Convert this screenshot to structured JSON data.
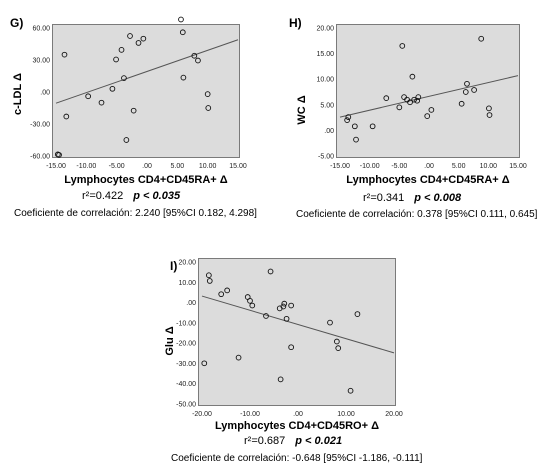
{
  "chart_data": [
    {
      "type": "scatter",
      "panel_label": "G)",
      "xlabel": "Lymphocytes CD4+CD45RA+ Δ",
      "ylabel": "c-LDL Δ",
      "xlim": [
        -15,
        15
      ],
      "ylim": [
        -60,
        60
      ],
      "xticks": [
        "-15.00",
        "-10.00",
        "-5.00",
        ".00",
        "5.00",
        "10.00",
        "15.00"
      ],
      "yticks": [
        "60.00",
        "30.00",
        ".00",
        "-30.00",
        "-60.00"
      ],
      "x": [
        -14.7,
        -14.5,
        -13.6,
        -13.3,
        -9.7,
        -7.5,
        -5.7,
        -5.1,
        -4.2,
        -3.8,
        -3.4,
        -2.8,
        -2.2,
        -1.4,
        -0.6,
        5.6,
        5.9,
        6.0,
        7.8,
        8.4,
        10.0,
        10.1
      ],
      "y": [
        -58.5,
        -59.0,
        35.0,
        -23.0,
        -4.0,
        -10.0,
        3.0,
        30.5,
        39.5,
        13.0,
        -45.0,
        52.5,
        -17.5,
        46.0,
        50.0,
        68.0,
        56.0,
        13.5,
        34.0,
        29.5,
        -2.0,
        -15.0
      ],
      "fit_line": {
        "x": [
          -15,
          15
        ],
        "y": [
          -10.5,
          49.0
        ]
      },
      "r2": "r²=0.422",
      "p": "p < 0.035",
      "coef": "Coeficiente de correlación: 2.240 [95%CI 0.182, 4.298]"
    },
    {
      "type": "scatter",
      "panel_label": "H)",
      "xlabel": "Lymphocytes CD4+CD45RA+ Δ",
      "ylabel": "WC Δ",
      "xlim": [
        -15,
        15
      ],
      "ylim": [
        -5,
        20
      ],
      "xticks": [
        "-15.00",
        "-10.00",
        "-5.00",
        ".00",
        "5.00",
        "10.00",
        "15.00"
      ],
      "yticks": [
        "20.00",
        "15.00",
        "10.00",
        "5.00",
        ".00",
        "-5.00"
      ],
      "x": [
        -13.8,
        -13.6,
        -12.5,
        -12.3,
        -9.5,
        -7.2,
        -5.0,
        -4.5,
        -4.2,
        -3.7,
        -3.2,
        -2.8,
        -2.5,
        -2.0,
        -1.8,
        -0.3,
        0.4,
        5.5,
        6.2,
        6.4,
        7.6,
        8.8,
        10.1,
        10.2
      ],
      "y": [
        2.0,
        2.6,
        0.8,
        -1.8,
        0.8,
        6.3,
        4.5,
        16.5,
        6.5,
        6.0,
        5.5,
        10.5,
        6.0,
        5.8,
        6.5,
        2.8,
        4.0,
        5.2,
        7.5,
        9.1,
        7.9,
        17.9,
        4.3,
        3.0
      ],
      "fit_line": {
        "x": [
          -15,
          15
        ],
        "y": [
          2.6,
          10.7
        ]
      },
      "r2": "r²=0.341",
      "p": "p < 0.008",
      "coef": "Coeficiente de correlación: 0.378 [95%CI 0.111, 0.645]"
    },
    {
      "type": "scatter",
      "panel_label": "I)",
      "xlabel": "Lymphocytes CD4+CD45RO+ Δ",
      "ylabel": "Glu Δ",
      "xlim": [
        -20,
        22
      ],
      "ylim": [
        -50,
        25
      ],
      "xticks": [
        "-20.00",
        "-10.00",
        ".00",
        "10.00",
        "20.00"
      ],
      "yticks": [
        "20.00",
        "10.00",
        ".00",
        "-10.00",
        "-20.00",
        "-30.00",
        "-40.00",
        "-50.00"
      ],
      "x": [
        -19.5,
        -18.5,
        -18.3,
        -15.8,
        -14.5,
        -12.0,
        -10.0,
        -9.5,
        -9.0,
        -6.0,
        -5.0,
        -3.0,
        -2.8,
        -2.2,
        -2.0,
        -1.5,
        -0.5,
        -0.5,
        8.0,
        9.5,
        9.8,
        12.5,
        14.0
      ],
      "y": [
        -28.5,
        18.0,
        15.0,
        8.0,
        10.0,
        -25.5,
        6.5,
        4.5,
        2.0,
        -3.5,
        20.0,
        0.5,
        -37.0,
        1.5,
        3.0,
        -5.0,
        -20.0,
        2.0,
        -7.0,
        -17.0,
        -20.5,
        -43.0,
        -2.5
      ],
      "fit_line": {
        "x": [
          -20,
          22
        ],
        "y": [
          7.0,
          -23.0
        ]
      },
      "r2": "r²=0.687",
      "p": "p < 0.021",
      "coef": "Coeficiente de correlación: -0.648 [95%CI -1.186, -0.111]"
    }
  ]
}
